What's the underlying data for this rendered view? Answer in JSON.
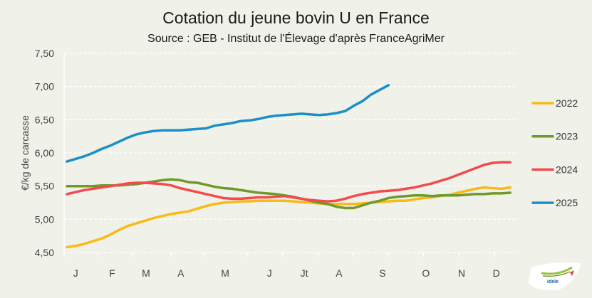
{
  "chart_data": {
    "type": "line",
    "title": "Cotation du jeune bovin U en France",
    "subtitle": "Source : GEB - Institut de l'Élevage d'après FranceAgriMer",
    "ylabel": "€/kg de carcasse",
    "xlabel": "",
    "ylim": [
      4.5,
      7.5
    ],
    "yticks": [
      "4,50",
      "5,00",
      "5,50",
      "6,00",
      "6,50",
      "7,00",
      "7,50"
    ],
    "month_labels": [
      "J",
      "F",
      "M",
      "A",
      "M",
      "J",
      "Jt",
      "A",
      "S",
      "O",
      "N",
      "D"
    ],
    "grid": "horizontal dashed",
    "legend": "right",
    "x_unit": "week",
    "series": [
      {
        "name": "2022",
        "color": "#fbb918",
        "values": [
          4.58,
          4.6,
          4.63,
          4.67,
          4.71,
          4.77,
          4.84,
          4.9,
          4.94,
          4.98,
          5.02,
          5.05,
          5.08,
          5.1,
          5.12,
          5.16,
          5.2,
          5.23,
          5.25,
          5.26,
          5.27,
          5.27,
          5.28,
          5.28,
          5.28,
          5.28,
          5.27,
          5.26,
          5.25,
          5.24,
          5.23,
          5.23,
          5.23,
          5.23,
          5.24,
          5.25,
          5.26,
          5.27,
          5.28,
          5.28,
          5.3,
          5.32,
          5.33,
          5.35,
          5.37,
          5.4,
          5.43,
          5.46,
          5.48,
          5.47,
          5.46,
          5.48
        ]
      },
      {
        "name": "2023",
        "color": "#6e9a2b",
        "values": [
          5.5,
          5.5,
          5.5,
          5.5,
          5.51,
          5.51,
          5.51,
          5.52,
          5.53,
          5.55,
          5.57,
          5.59,
          5.6,
          5.59,
          5.56,
          5.55,
          5.52,
          5.49,
          5.47,
          5.46,
          5.44,
          5.42,
          5.4,
          5.39,
          5.38,
          5.36,
          5.34,
          5.31,
          5.28,
          5.25,
          5.23,
          5.19,
          5.17,
          5.17,
          5.21,
          5.25,
          5.28,
          5.32,
          5.34,
          5.35,
          5.36,
          5.36,
          5.35,
          5.36,
          5.36,
          5.36,
          5.37,
          5.38,
          5.38,
          5.39,
          5.39,
          5.4
        ]
      },
      {
        "name": "2024",
        "color": "#f44a4f",
        "values": [
          5.38,
          5.41,
          5.44,
          5.46,
          5.48,
          5.5,
          5.52,
          5.54,
          5.55,
          5.55,
          5.54,
          5.53,
          5.51,
          5.47,
          5.44,
          5.41,
          5.38,
          5.35,
          5.32,
          5.31,
          5.31,
          5.32,
          5.33,
          5.33,
          5.34,
          5.35,
          5.33,
          5.31,
          5.29,
          5.28,
          5.27,
          5.28,
          5.31,
          5.35,
          5.38,
          5.4,
          5.42,
          5.43,
          5.44,
          5.46,
          5.48,
          5.51,
          5.54,
          5.58,
          5.62,
          5.67,
          5.72,
          5.77,
          5.82,
          5.85,
          5.86,
          5.86
        ]
      },
      {
        "name": "2025",
        "color": "#1a8fc8",
        "values": [
          5.87,
          5.91,
          5.95,
          6.0,
          6.06,
          6.11,
          6.17,
          6.23,
          6.28,
          6.31,
          6.33,
          6.34,
          6.34,
          6.34,
          6.35,
          6.36,
          6.37,
          6.41,
          6.43,
          6.45,
          6.48,
          6.49,
          6.51,
          6.54,
          6.56,
          6.57,
          6.58,
          6.59,
          6.58,
          6.57,
          6.58,
          6.6,
          6.63,
          6.71,
          6.78,
          6.88,
          6.95,
          7.02
        ]
      }
    ]
  },
  "logo_text": "idele"
}
